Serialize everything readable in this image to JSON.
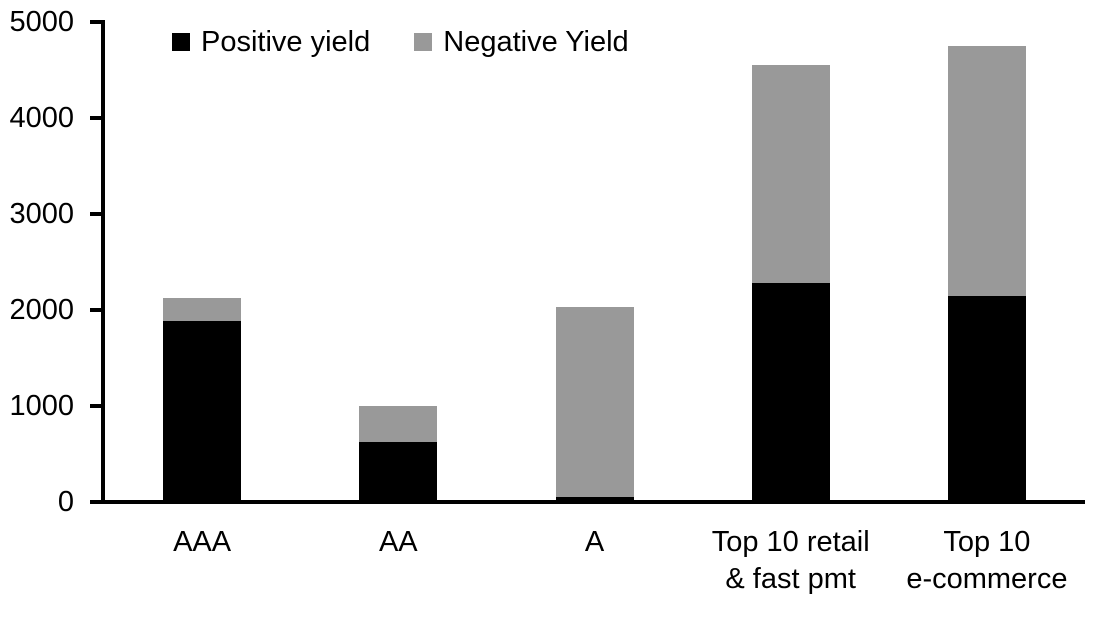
{
  "chart_data": {
    "type": "bar",
    "stacked": true,
    "title": "",
    "xlabel": "",
    "ylabel": "",
    "categories": [
      "AAA",
      "AA",
      "A",
      "Top 10 retail & fast pmt",
      "Top 10 e-commerce"
    ],
    "category_lines": [
      [
        "AAA"
      ],
      [
        "AA"
      ],
      [
        "A"
      ],
      [
        "Top 10 retail",
        "& fast pmt"
      ],
      [
        "Top 10",
        "e-commerce"
      ]
    ],
    "series": [
      {
        "name": "Positive yield",
        "color": "#000000",
        "values": [
          1890,
          620,
          50,
          2280,
          2150
        ]
      },
      {
        "name": "Negative Yield",
        "color": "#999999",
        "values": [
          230,
          380,
          1980,
          2270,
          2600
        ]
      }
    ],
    "totals": [
      2120,
      1000,
      2030,
      4550,
      4750
    ],
    "ylim": [
      0,
      5000
    ],
    "ytick_values": [
      5000,
      4000,
      3000,
      2000,
      1000,
      0
    ],
    "yticks_display": [
      "5000",
      "4000",
      "3000",
      "2000",
      "1000",
      "0"
    ],
    "grid": false,
    "legend_position": "top-inside",
    "axis_color": "#000000",
    "background_color": "#ffffff"
  }
}
